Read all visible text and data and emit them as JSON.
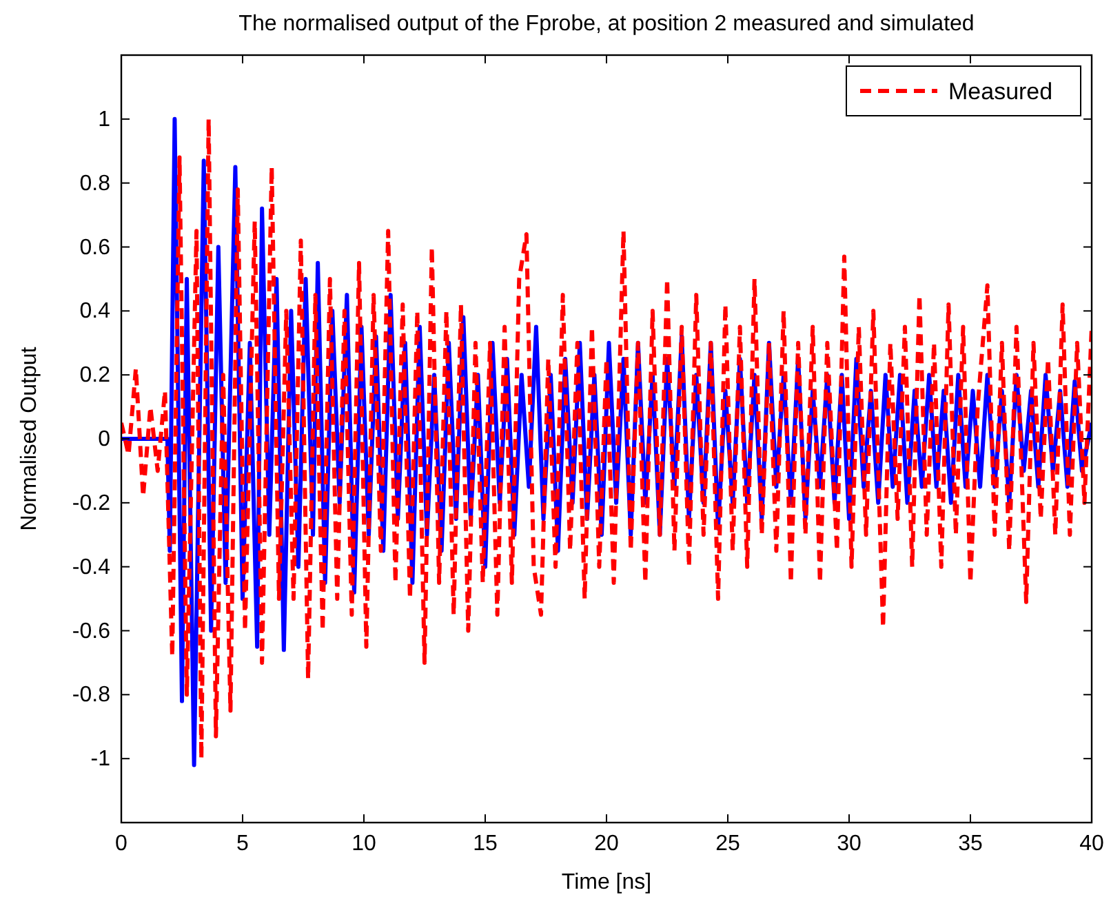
{
  "chart_data": {
    "type": "line",
    "title": "The normalised output of the Fprobe, at position 2 measured and simulated",
    "xlabel": "Time [ns]",
    "ylabel": "Normalised Output",
    "xlim": [
      0,
      40
    ],
    "ylim": [
      -1.2,
      1.2
    ],
    "xticks": [
      0,
      5,
      10,
      15,
      20,
      25,
      30,
      35,
      40
    ],
    "yticks": [
      -1,
      -0.8,
      -0.6,
      -0.4,
      -0.2,
      0,
      0.2,
      0.4,
      0.6,
      0.8,
      1
    ],
    "grid": false,
    "legend": "top right",
    "series": [
      {
        "color": "#0000ff",
        "line_style": "solid",
        "x": [
          0,
          1,
          1.9,
          2.0,
          2.2,
          2.5,
          2.7,
          3.0,
          3.4,
          3.7,
          4.0,
          4.3,
          4.7,
          5.0,
          5.3,
          5.6,
          5.8,
          6.1,
          6.4,
          6.7,
          7.0,
          7.3,
          7.6,
          7.9,
          8.1,
          8.4,
          8.7,
          9.0,
          9.3,
          9.6,
          9.9,
          10.2,
          10.5,
          10.8,
          11.1,
          11.4,
          11.7,
          12.0,
          12.3,
          12.6,
          12.9,
          13.2,
          13.5,
          13.8,
          14.1,
          14.4,
          14.7,
          15.0,
          15.3,
          15.6,
          15.9,
          16.2,
          16.5,
          16.8,
          17.1,
          17.4,
          17.7,
          18.0,
          18.3,
          18.6,
          18.9,
          19.2,
          19.5,
          19.8,
          20.1,
          20.4,
          20.7,
          21.0,
          21.3,
          21.6,
          21.9,
          22.2,
          22.5,
          22.8,
          23.1,
          23.4,
          23.7,
          24.0,
          24.3,
          24.6,
          24.9,
          25.2,
          25.5,
          25.8,
          26.1,
          26.4,
          26.7,
          27.0,
          27.3,
          27.6,
          27.9,
          28.2,
          28.5,
          28.8,
          29.1,
          29.4,
          29.7,
          30.0,
          30.3,
          30.6,
          30.9,
          31.2,
          31.5,
          31.8,
          32.1,
          32.4,
          32.7,
          33.0,
          33.3,
          33.6,
          33.9,
          34.2,
          34.5,
          34.8,
          35.1,
          35.4,
          35.7,
          36.0,
          36.3,
          36.6,
          36.9,
          37.2,
          37.5,
          37.8,
          38.1,
          38.4,
          38.7,
          39.0,
          39.3,
          39.6,
          40
        ],
        "values": [
          0,
          0,
          0,
          -0.35,
          1.0,
          -0.82,
          0.5,
          -1.02,
          0.87,
          -0.6,
          0.6,
          -0.45,
          0.85,
          -0.5,
          0.3,
          -0.65,
          0.72,
          -0.3,
          0.5,
          -0.66,
          0.4,
          -0.4,
          0.5,
          -0.3,
          0.55,
          -0.45,
          0.4,
          -0.2,
          0.45,
          -0.48,
          0.35,
          -0.3,
          0.32,
          -0.35,
          0.45,
          -0.25,
          0.3,
          -0.45,
          0.35,
          -0.3,
          0.2,
          -0.35,
          0.3,
          -0.25,
          0.38,
          -0.25,
          0.2,
          -0.4,
          0.3,
          -0.2,
          0.25,
          -0.3,
          0.2,
          -0.15,
          0.35,
          -0.25,
          0.2,
          -0.35,
          0.25,
          -0.2,
          0.3,
          -0.25,
          0.2,
          -0.3,
          0.3,
          -0.2,
          0.25,
          -0.3,
          0.3,
          -0.2,
          0.2,
          -0.3,
          0.25,
          -0.15,
          0.32,
          -0.25,
          0.2,
          -0.2,
          0.3,
          -0.28,
          0.15,
          -0.2,
          0.25,
          -0.2,
          0.2,
          -0.25,
          0.3,
          -0.15,
          0.2,
          -0.2,
          0.25,
          -0.25,
          0.15,
          -0.15,
          0.2,
          -0.2,
          0.2,
          -0.25,
          0.25,
          -0.15,
          0.15,
          -0.2,
          0.2,
          -0.15,
          0.2,
          -0.2,
          0.15,
          -0.15,
          0.2,
          -0.15,
          0.15,
          -0.2,
          0.2,
          -0.15,
          0.15,
          -0.15,
          0.2,
          -0.15,
          0.15,
          -0.2,
          0.2,
          -0.1,
          0.15,
          -0.15,
          0.2,
          -0.1,
          0.15,
          -0.15,
          0.18,
          -0.1,
          0.05
        ]
      },
      {
        "name": "Measured",
        "color": "#ff0000",
        "line_style": "dashed",
        "x": [
          0,
          0.3,
          0.6,
          0.9,
          1.2,
          1.5,
          1.8,
          2.1,
          2.4,
          2.7,
          3.1,
          3.3,
          3.6,
          3.9,
          4.2,
          4.5,
          4.8,
          5.1,
          5.5,
          5.8,
          6.2,
          6.5,
          6.8,
          7.1,
          7.4,
          7.7,
          8.0,
          8.3,
          8.6,
          8.9,
          9.2,
          9.5,
          9.8,
          10.1,
          10.4,
          10.7,
          11.0,
          11.3,
          11.6,
          11.9,
          12.2,
          12.5,
          12.8,
          13.1,
          13.4,
          13.7,
          14.0,
          14.3,
          14.6,
          14.9,
          15.2,
          15.5,
          15.8,
          16.1,
          16.4,
          16.7,
          17.0,
          17.3,
          17.6,
          17.9,
          18.2,
          18.5,
          18.8,
          19.1,
          19.4,
          19.7,
          20.0,
          20.3,
          20.7,
          21.0,
          21.3,
          21.6,
          21.9,
          22.2,
          22.5,
          22.8,
          23.1,
          23.4,
          23.7,
          24.0,
          24.3,
          24.6,
          24.9,
          25.2,
          25.5,
          25.8,
          26.1,
          26.4,
          26.7,
          27.0,
          27.3,
          27.6,
          27.9,
          28.2,
          28.5,
          28.8,
          29.1,
          29.5,
          29.8,
          30.1,
          30.4,
          30.7,
          31.0,
          31.4,
          31.7,
          32.0,
          32.3,
          32.6,
          32.9,
          33.2,
          33.5,
          33.8,
          34.1,
          34.4,
          34.7,
          35.0,
          35.3,
          35.7,
          36.0,
          36.3,
          36.6,
          36.9,
          37.3,
          37.6,
          37.9,
          38.2,
          38.5,
          38.8,
          39.1,
          39.4,
          39.7,
          40
        ],
        "values": [
          0.05,
          -0.05,
          0.22,
          -0.18,
          0.1,
          -0.1,
          0.15,
          -0.68,
          0.88,
          -0.8,
          0.65,
          -1.0,
          1.0,
          -0.93,
          0.2,
          -0.85,
          0.78,
          -0.6,
          0.68,
          -0.7,
          0.85,
          -0.5,
          0.4,
          -0.5,
          0.62,
          -0.75,
          0.45,
          -0.6,
          0.5,
          -0.5,
          0.4,
          -0.55,
          0.55,
          -0.65,
          0.45,
          -0.35,
          0.65,
          -0.45,
          0.42,
          -0.5,
          0.4,
          -0.7,
          0.6,
          -0.45,
          0.4,
          -0.55,
          0.42,
          -0.6,
          0.3,
          -0.45,
          0.3,
          -0.55,
          0.35,
          -0.45,
          0.5,
          0.64,
          -0.4,
          -0.55,
          0.25,
          -0.4,
          0.45,
          -0.35,
          0.3,
          -0.5,
          0.35,
          -0.4,
          0.25,
          -0.45,
          0.65,
          -0.35,
          0.3,
          -0.45,
          0.4,
          -0.3,
          0.5,
          -0.35,
          0.35,
          -0.4,
          0.45,
          -0.3,
          0.3,
          -0.5,
          0.42,
          -0.35,
          0.35,
          -0.4,
          0.5,
          -0.3,
          0.3,
          -0.35,
          0.4,
          -0.45,
          0.3,
          -0.3,
          0.35,
          -0.45,
          0.3,
          -0.35,
          0.57,
          -0.4,
          0.35,
          -0.3,
          0.4,
          -0.59,
          0.3,
          -0.25,
          0.35,
          -0.4,
          0.45,
          -0.3,
          0.3,
          -0.4,
          0.42,
          -0.3,
          0.35,
          -0.45,
          0.1,
          0.48,
          -0.3,
          0.3,
          -0.35,
          0.35,
          -0.51,
          0.3,
          -0.25,
          0.25,
          -0.3,
          0.42,
          -0.3,
          0.3,
          -0.2,
          0.35
        ]
      }
    ]
  }
}
